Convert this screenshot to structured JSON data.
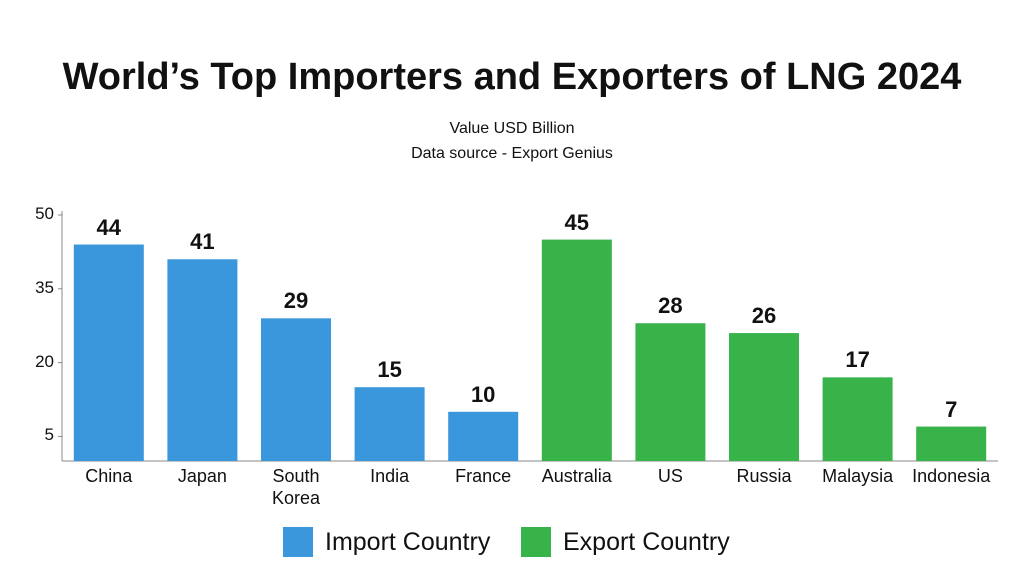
{
  "chart_data": {
    "type": "bar",
    "title": "World’s Top Importers and Exporters of LNG 2024",
    "subtitle": [
      "Value USD Billion",
      "Data source - Export Genius"
    ],
    "categories": [
      "China",
      "Japan",
      "South Korea",
      "India",
      "France",
      "Australia",
      "US",
      "Russia",
      "Malaysia",
      "Indonesia"
    ],
    "series": [
      {
        "name": "Import Country",
        "color": "#3a97dc",
        "values": [
          44,
          41,
          29,
          15,
          10,
          null,
          null,
          null,
          null,
          null
        ]
      },
      {
        "name": "Export Country",
        "color": "#37b34a",
        "values": [
          null,
          null,
          null,
          null,
          null,
          45,
          28,
          26,
          17,
          7
        ]
      }
    ],
    "ylim": [
      0,
      50
    ],
    "yticks": [
      5,
      20,
      35,
      50
    ],
    "grid": false,
    "legend": "bottom"
  }
}
